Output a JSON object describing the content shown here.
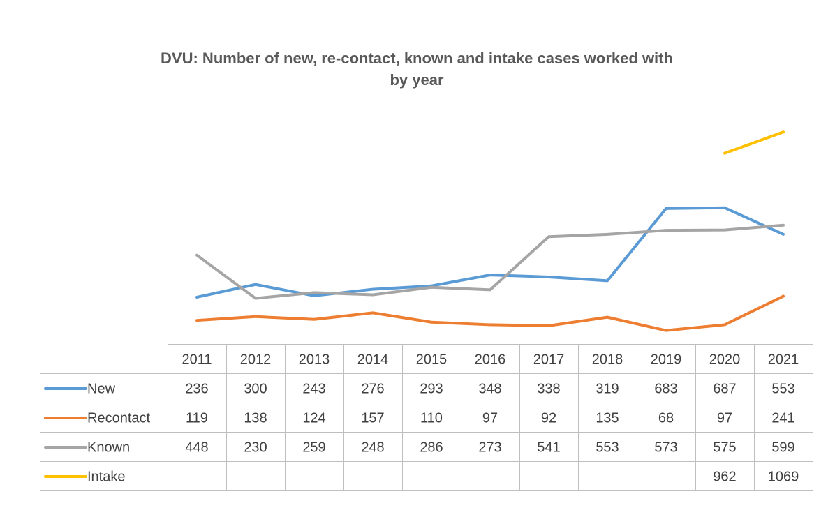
{
  "chart_data": {
    "type": "line",
    "title": "DVU: Number of new, re-contact, known and intake cases worked with by year",
    "categories": [
      "2011",
      "2012",
      "2013",
      "2014",
      "2015",
      "2016",
      "2017",
      "2018",
      "2019",
      "2020",
      "2021"
    ],
    "series": [
      {
        "name": "New",
        "color": "#5b9bd5",
        "values": [
          236,
          300,
          243,
          276,
          293,
          348,
          338,
          319,
          683,
          687,
          553
        ]
      },
      {
        "name": "Recontact",
        "color": "#ed7d31",
        "values": [
          119,
          138,
          124,
          157,
          110,
          97,
          92,
          135,
          68,
          97,
          241
        ]
      },
      {
        "name": "Known",
        "color": "#a5a5a5",
        "values": [
          448,
          230,
          259,
          248,
          286,
          273,
          541,
          553,
          573,
          575,
          599
        ]
      },
      {
        "name": "Intake",
        "color": "#ffc000",
        "values": [
          null,
          null,
          null,
          null,
          null,
          null,
          null,
          null,
          null,
          962,
          1069
        ]
      }
    ],
    "ylim": [
      0,
      1200
    ]
  }
}
